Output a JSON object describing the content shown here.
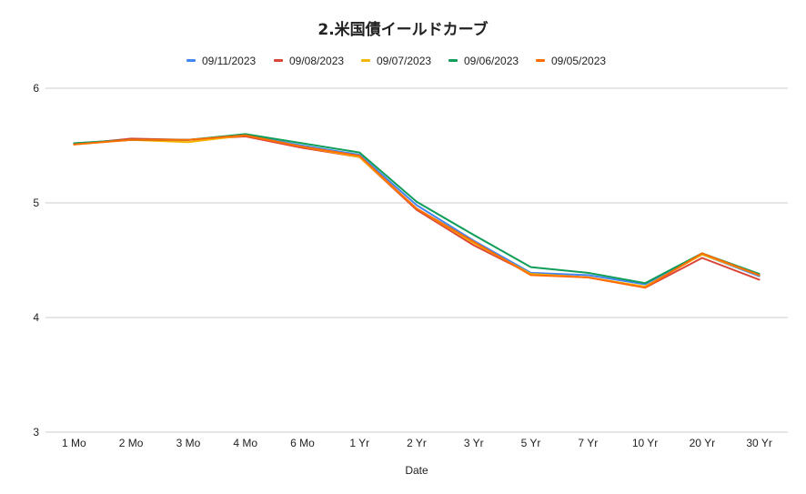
{
  "chart_data": {
    "type": "line",
    "title": "2.米国債イールドカーブ",
    "xlabel": "Date",
    "ylabel": "",
    "ylim": [
      3,
      6
    ],
    "yticks": [
      "3",
      "4",
      "5",
      "6"
    ],
    "grid": true,
    "legend_position": "top",
    "categories": [
      "1 Mo",
      "2 Mo",
      "3 Mo",
      "4 Mo",
      "6 Mo",
      "1 Yr",
      "2 Yr",
      "3 Yr",
      "5 Yr",
      "7 Yr",
      "10 Yr",
      "20 Yr",
      "30 Yr"
    ],
    "series": [
      {
        "name": "09/11/2023",
        "color": "#4285f4",
        "values": [
          5.52,
          5.55,
          5.55,
          5.59,
          5.5,
          5.42,
          4.98,
          4.67,
          4.39,
          4.37,
          4.29,
          4.55,
          4.36
        ]
      },
      {
        "name": "09/08/2023",
        "color": "#db4437",
        "values": [
          5.51,
          5.56,
          5.55,
          5.58,
          5.48,
          5.4,
          4.94,
          4.63,
          4.38,
          4.35,
          4.26,
          4.52,
          4.33
        ]
      },
      {
        "name": "09/07/2023",
        "color": "#f4b400",
        "values": [
          5.51,
          5.55,
          5.53,
          5.59,
          5.49,
          5.4,
          4.95,
          4.65,
          4.38,
          4.35,
          4.27,
          4.55,
          4.37
        ]
      },
      {
        "name": "09/06/2023",
        "color": "#0f9d58",
        "values": [
          5.52,
          5.55,
          5.55,
          5.6,
          5.52,
          5.44,
          5.01,
          4.72,
          4.44,
          4.39,
          4.3,
          4.56,
          4.38
        ]
      },
      {
        "name": "09/05/2023",
        "color": "#ff6d01",
        "values": [
          5.51,
          5.55,
          5.55,
          5.59,
          5.49,
          5.41,
          4.95,
          4.66,
          4.37,
          4.35,
          4.26,
          4.56,
          4.37
        ]
      }
    ]
  }
}
